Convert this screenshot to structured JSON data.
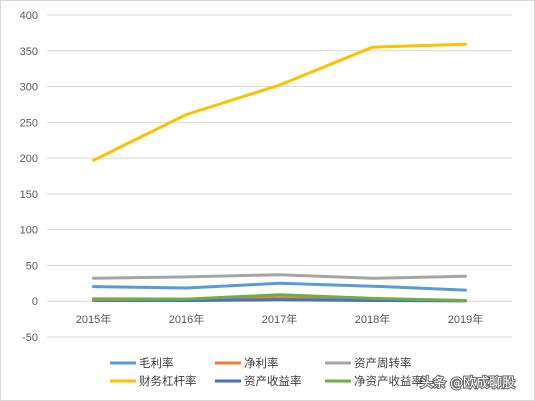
{
  "chart_data": {
    "type": "line",
    "title": "",
    "xlabel": "",
    "ylabel": "",
    "categories": [
      "2015年",
      "2016年",
      "2017年",
      "2018年",
      "2019年"
    ],
    "ylim": [
      -50,
      400
    ],
    "yticks": [
      -50,
      0,
      50,
      100,
      150,
      200,
      250,
      300,
      350,
      400
    ],
    "grid": true,
    "legend_position": "bottom",
    "series": [
      {
        "name": "毛利率",
        "color": "#5b9bd5",
        "values": [
          20.5,
          18.5,
          25,
          21,
          15.5
        ]
      },
      {
        "name": "净利率",
        "color": "#ed7d31",
        "values": [
          3.5,
          3,
          4.5,
          2.5,
          1
        ]
      },
      {
        "name": "资产周转率",
        "color": "#a5a5a5",
        "values": [
          32,
          34,
          37,
          32,
          35
        ]
      },
      {
        "name": "财务杠杆率",
        "color": "#ffc000",
        "values": [
          197,
          261,
          302,
          355,
          359
        ]
      },
      {
        "name": "资产收益率",
        "color": "#4472c4",
        "values": [
          1,
          1,
          2,
          1,
          0.5
        ]
      },
      {
        "name": "净资产收益率",
        "color": "#70ad47",
        "values": [
          2,
          3,
          9,
          4,
          1
        ]
      }
    ]
  },
  "watermark": "头条 @欧成聊股"
}
